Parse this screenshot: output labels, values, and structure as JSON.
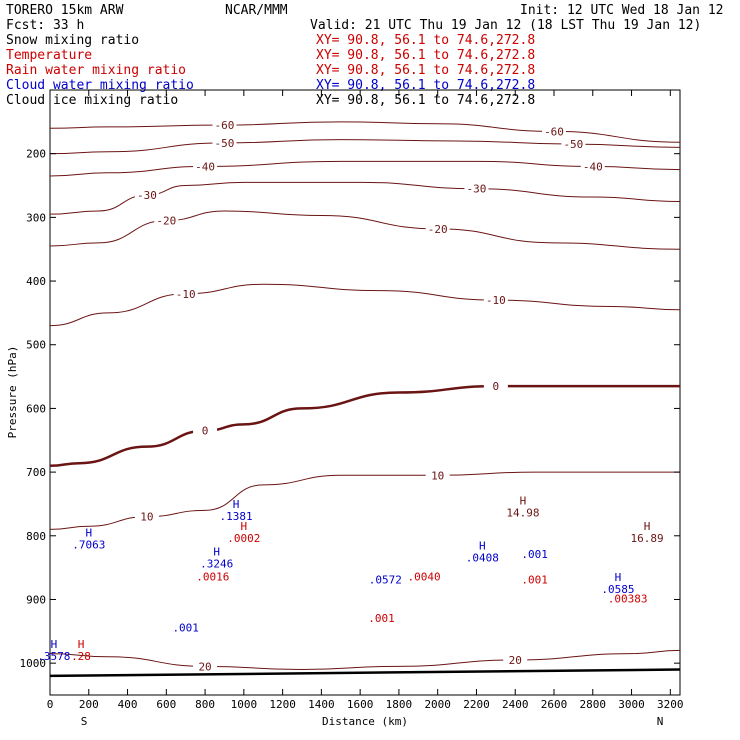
{
  "header": {
    "model": "TORERO  15km ARW",
    "org": "NCAR/MMM",
    "init": "Init: 12 UTC Wed 18 Jan 12",
    "fcst": "Fcst:   33 h",
    "valid": "Valid: 21 UTC Thu 19 Jan 12 (18 LST Thu 19 Jan 12)"
  },
  "fields": [
    {
      "name": "Snow mixing ratio",
      "xy": "XY=  90.8, 56.1 to  74.6,272.8",
      "name_color": "#000000",
      "xy_color": "#cc0000"
    },
    {
      "name": "Temperature",
      "xy": "XY=  90.8, 56.1 to  74.6,272.8",
      "name_color": "#cc0000",
      "xy_color": "#cc0000"
    },
    {
      "name": "Rain water mixing ratio",
      "xy": "XY=  90.8, 56.1 to  74.6,272.8",
      "name_color": "#cc0000",
      "xy_color": "#cc0000"
    },
    {
      "name": "Cloud water mixing ratio",
      "xy": "XY=  90.8, 56.1 to  74.6,272.8",
      "name_color": "#0000cc",
      "xy_color": "#0000cc"
    },
    {
      "name": "Cloud ice mixing ratio",
      "xy": "XY=  90.8, 56.1 to  74.6,272.8",
      "name_color": "#000000",
      "xy_color": "#000000"
    }
  ],
  "chart_data": {
    "type": "line",
    "xlabel": "Distance (km)",
    "ylabel": "Pressure (hPa)",
    "xlim": [
      0,
      3250
    ],
    "ylim": [
      1050,
      100
    ],
    "x_ticks": [
      0,
      200,
      400,
      600,
      800,
      1000,
      1200,
      1400,
      1600,
      1800,
      2000,
      2200,
      2400,
      2600,
      2800,
      3000,
      3200
    ],
    "y_ticks": [
      200,
      300,
      400,
      500,
      600,
      700,
      800,
      900,
      1000
    ],
    "left_end_label": "S",
    "right_end_label": "N",
    "temperature_contours": [
      {
        "level": -60,
        "points": [
          [
            0,
            160
          ],
          [
            300,
            158
          ],
          [
            900,
            155
          ],
          [
            1500,
            150
          ],
          [
            2000,
            153
          ],
          [
            2600,
            165
          ],
          [
            3250,
            182
          ]
        ]
      },
      {
        "level": -50,
        "points": [
          [
            0,
            200
          ],
          [
            300,
            197
          ],
          [
            900,
            183
          ],
          [
            1500,
            178
          ],
          [
            2100,
            180
          ],
          [
            2700,
            185
          ],
          [
            3250,
            190
          ]
        ]
      },
      {
        "level": -40,
        "points": [
          [
            0,
            235
          ],
          [
            300,
            230
          ],
          [
            800,
            220
          ],
          [
            1500,
            212
          ],
          [
            2200,
            212
          ],
          [
            2800,
            220
          ],
          [
            3250,
            225
          ]
        ]
      },
      {
        "level": -30,
        "points": [
          [
            0,
            295
          ],
          [
            250,
            290
          ],
          [
            500,
            265
          ],
          [
            700,
            250
          ],
          [
            1000,
            245
          ],
          [
            1600,
            245
          ],
          [
            2200,
            255
          ],
          [
            2800,
            268
          ],
          [
            3250,
            275
          ]
        ]
      },
      {
        "level": -20,
        "points": [
          [
            0,
            345
          ],
          [
            250,
            340
          ],
          [
            600,
            305
          ],
          [
            900,
            290
          ],
          [
            1400,
            297
          ],
          [
            2000,
            318
          ],
          [
            2600,
            340
          ],
          [
            3250,
            350
          ]
        ]
      },
      {
        "level": -10,
        "points": [
          [
            0,
            470
          ],
          [
            300,
            450
          ],
          [
            700,
            420
          ],
          [
            1100,
            405
          ],
          [
            1700,
            415
          ],
          [
            2300,
            430
          ],
          [
            2900,
            440
          ],
          [
            3250,
            445
          ]
        ]
      },
      {
        "level": 0,
        "points": [
          [
            0,
            690
          ],
          [
            150,
            686
          ],
          [
            500,
            660
          ],
          [
            800,
            635
          ],
          [
            1000,
            625
          ],
          [
            1300,
            600
          ],
          [
            1800,
            575
          ],
          [
            2300,
            565
          ],
          [
            2800,
            565
          ],
          [
            3250,
            565
          ]
        ]
      },
      {
        "level": 10,
        "points": [
          [
            0,
            790
          ],
          [
            200,
            785
          ],
          [
            500,
            770
          ],
          [
            800,
            760
          ],
          [
            1100,
            720
          ],
          [
            1500,
            705
          ],
          [
            2000,
            705
          ],
          [
            2500,
            700
          ],
          [
            3250,
            700
          ]
        ]
      },
      {
        "level": 20,
        "points": [
          [
            0,
            985
          ],
          [
            300,
            990
          ],
          [
            800,
            1005
          ],
          [
            1300,
            1010
          ],
          [
            1800,
            1005
          ],
          [
            2400,
            995
          ],
          [
            3000,
            985
          ],
          [
            3250,
            980
          ]
        ]
      }
    ],
    "cloud_water_extrema": [
      {
        "marker": "H",
        "value": ".7063",
        "x": 200,
        "p": 820
      },
      {
        "marker": "H",
        "value": ".1381",
        "x": 960,
        "p": 775
      },
      {
        "marker": "H",
        "value": ".3246",
        "x": 860,
        "p": 850
      },
      {
        "marker": "",
        "value": ".001",
        "x": 700,
        "p": 950
      },
      {
        "marker": "",
        "value": ".0572",
        "x": 1730,
        "p": 875
      },
      {
        "marker": "H",
        "value": ".0408",
        "x": 2230,
        "p": 840
      },
      {
        "marker": "",
        "value": ".001",
        "x": 2500,
        "p": 835
      },
      {
        "marker": "H",
        "value": ".0585",
        "x": 2930,
        "p": 890
      },
      {
        "marker": "H",
        "value": ".3578",
        "x": 20,
        "p": 995
      }
    ],
    "rain_water_extrema": [
      {
        "marker": "H",
        "value": ".0002",
        "x": 1000,
        "p": 810
      },
      {
        "marker": "",
        "value": ".0016",
        "x": 840,
        "p": 870
      },
      {
        "marker": "",
        "value": ".001",
        "x": 1710,
        "p": 935
      },
      {
        "marker": "",
        "value": ".0040",
        "x": 1930,
        "p": 870
      },
      {
        "marker": "",
        "value": ".001",
        "x": 2500,
        "p": 875
      },
      {
        "marker": "",
        "value": ".00383",
        "x": 2980,
        "p": 905
      },
      {
        "marker": "H",
        "value": ".28",
        "x": 160,
        "p": 995
      }
    ],
    "temperature_extrema": [
      {
        "marker": "H",
        "value": "14.98",
        "x": 2440,
        "p": 770
      },
      {
        "marker": "H",
        "value": "16.89",
        "x": 3080,
        "p": 810
      }
    ]
  }
}
